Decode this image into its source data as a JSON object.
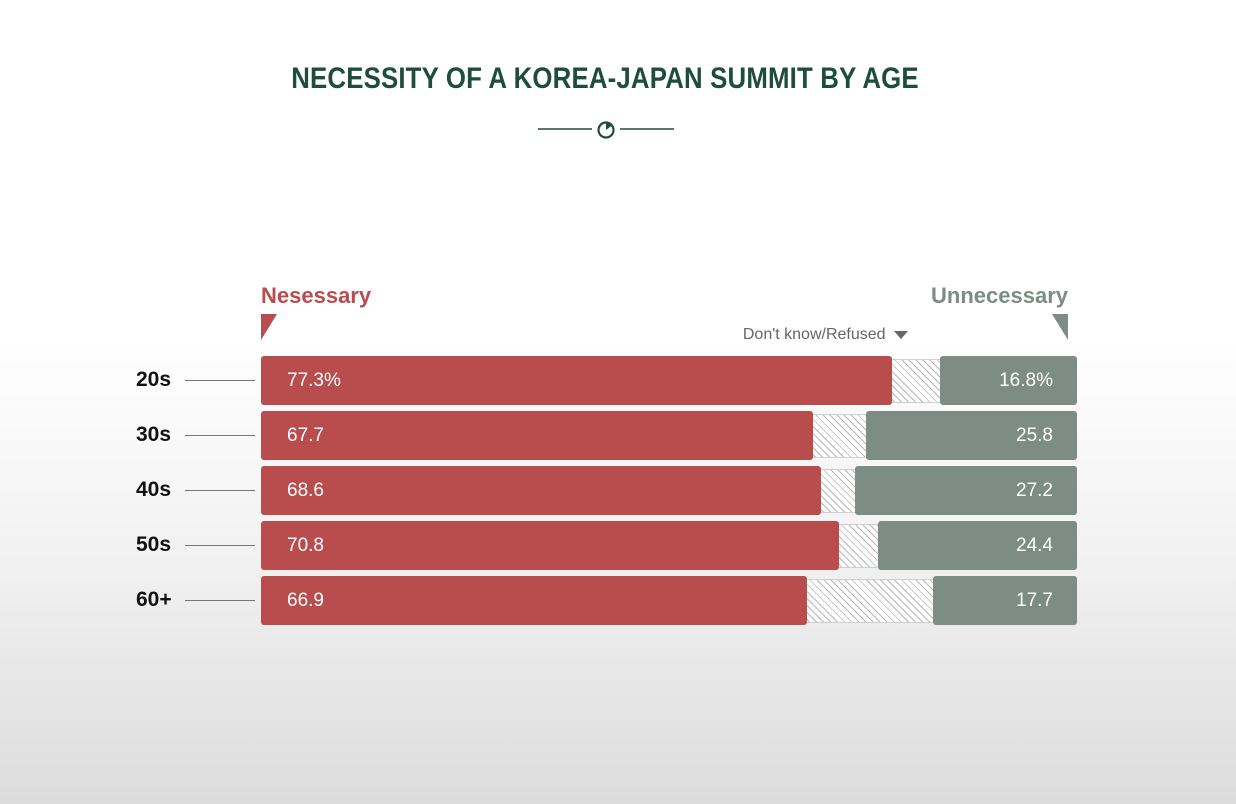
{
  "colors": {
    "necessary": "#b94d4d",
    "unnecessary": "#7d8c84",
    "title": "#1e4d3c"
  },
  "chart_data": {
    "type": "bar",
    "title": "NECESSITY OF A KOREA-JAPAN SUMMIT BY AGE",
    "orientation": "horizontal-stacked",
    "categories": [
      "20s",
      "30s",
      "40s",
      "50s",
      "60+"
    ],
    "series": [
      {
        "name": "Nesessary",
        "values": [
          77.3,
          67.7,
          68.6,
          70.8,
          66.9
        ],
        "labels": [
          "77.3%",
          "67.7",
          "68.6",
          "70.8",
          "66.9"
        ]
      },
      {
        "name": "Don't know/Refused",
        "values": [
          5.9,
          6.5,
          4.2,
          4.8,
          15.4
        ]
      },
      {
        "name": "Unnecessary",
        "values": [
          16.8,
          25.8,
          27.2,
          24.4,
          17.7
        ],
        "labels": [
          "16.8%",
          "25.8",
          "27.2",
          "24.4",
          "17.7"
        ]
      }
    ],
    "xlim": [
      0,
      100
    ]
  }
}
